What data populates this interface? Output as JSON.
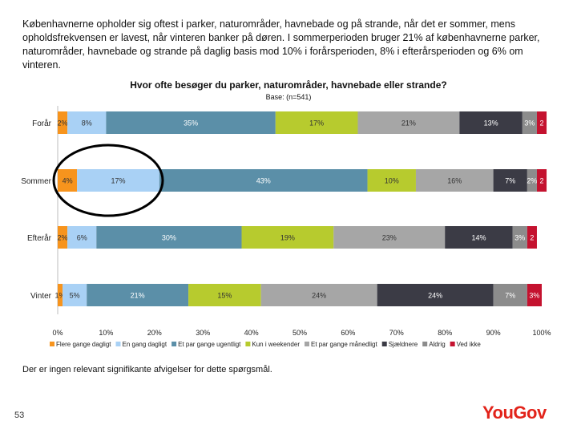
{
  "intro_text": "Københavnerne opholder sig oftest i parker, naturområder, havnebade og på strande, når det er sommer, mens opholdsfrekvensen er lavest, når vinteren banker på døren. I sommerperioden bruger 21% af københavnerne parker, naturområder, havnebade og strande på daglig basis mod 10% i forårsperioden, 8% i efterårsperioden og 6% om vinteren.",
  "footnote": "Der er ingen relevant signifikante afvigelser for dette spørgsmål.",
  "page_number": "53",
  "logo_text": "YouGov",
  "chart_data": {
    "type": "bar",
    "orientation": "horizontal",
    "stacked": true,
    "title": "Hvor ofte besøger du parker, naturområder, havnebade eller strande?",
    "subtitle": "Base: (n=541)",
    "categories": [
      "Forår",
      "Sommer",
      "Efterår",
      "Vinter"
    ],
    "series": [
      {
        "name": "Flere gange dagligt",
        "color": "#f7941d",
        "values": [
          2,
          4,
          2,
          1
        ]
      },
      {
        "name": "En gang dagligt",
        "color": "#a9d1f5",
        "values": [
          8,
          17,
          6,
          5
        ]
      },
      {
        "name": "Et par gange ugentligt",
        "color": "#5b8fa8",
        "values": [
          35,
          43,
          30,
          21
        ]
      },
      {
        "name": "Kun i weekender",
        "color": "#b7cb2e",
        "values": [
          17,
          10,
          19,
          15
        ]
      },
      {
        "name": "Et par gange månedligt",
        "color": "#a6a6a6",
        "values": [
          21,
          16,
          23,
          24
        ]
      },
      {
        "name": "Sjældnere",
        "color": "#3b3b45",
        "values": [
          13,
          7,
          14,
          24
        ]
      },
      {
        "name": "Aldrig",
        "color": "#8c8c8c",
        "values": [
          3,
          2,
          3,
          7
        ]
      },
      {
        "name": "Ved ikke",
        "color": "#c4122f",
        "values": [
          2,
          2,
          2,
          3
        ]
      }
    ],
    "data_labels": [
      [
        "2%",
        "8%",
        "35%",
        "17%",
        "21%",
        "13%",
        "3%",
        "2"
      ],
      [
        "4%",
        "17%",
        "43%",
        "10%",
        "16%",
        "7%",
        "2%",
        "2"
      ],
      [
        "2%",
        "6%",
        "30%",
        "19%",
        "23%",
        "14%",
        "3%",
        "2"
      ],
      [
        "1%",
        "5%",
        "21%",
        "15%",
        "24%",
        "24%",
        "7%",
        "3%"
      ]
    ],
    "xticks": [
      "0%",
      "10%",
      "20%",
      "30%",
      "40%",
      "50%",
      "60%",
      "70%",
      "80%",
      "90%",
      "100%"
    ],
    "xlim": [
      0,
      100
    ],
    "legend_position": "bottom",
    "annotation": "circle around Sommer rows for Flere gange dagligt and En gang dagligt"
  }
}
